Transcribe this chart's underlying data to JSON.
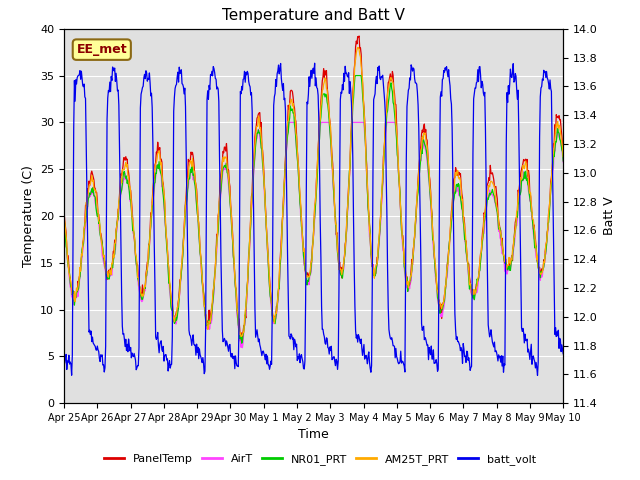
{
  "title": "Temperature and Batt V",
  "xlabel": "Time",
  "ylabel_left": "Temperature (C)",
  "ylabel_right": "Batt V",
  "annotation": "EE_met",
  "ylim_left": [
    0,
    40
  ],
  "ylim_right": [
    11.4,
    14.0
  ],
  "x_tick_labels": [
    "Apr 25",
    "Apr 26",
    "Apr 27",
    "Apr 28",
    "Apr 29",
    "Apr 30",
    "May 1",
    "May 2",
    "May 3",
    "May 4",
    "May 5",
    "May 6",
    "May 7",
    "May 8",
    "May 9",
    "May 10"
  ],
  "colors": {
    "PanelTemp": "#dd0000",
    "AirT": "#ff44ff",
    "NR01_PRT": "#00cc00",
    "AM25T_PRT": "#ffaa00",
    "batt_volt": "#0000ee"
  },
  "legend_labels": [
    "PanelTemp",
    "AirT",
    "NR01_PRT",
    "AM25T_PRT",
    "batt_volt"
  ],
  "plot_bg_color": "#e0e0e0",
  "fig_bg_color": "#ffffff",
  "grid_color": "#ffffff",
  "title_fontsize": 11,
  "tick_fontsize": 8,
  "label_fontsize": 9
}
